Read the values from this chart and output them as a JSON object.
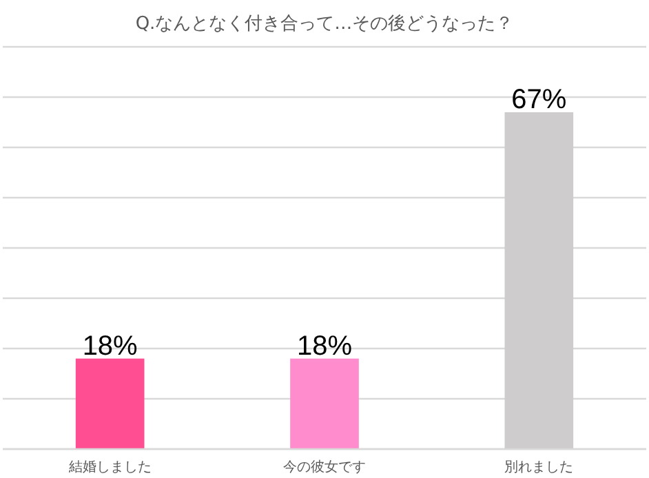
{
  "chart_data": {
    "type": "bar",
    "title": "Q.なんとなく付き合って…その後どうなった？",
    "categories": [
      "結婚しました",
      "今の彼女です",
      "別れました"
    ],
    "values": [
      18,
      18,
      67
    ],
    "colors": [
      "#ff4f92",
      "#ff8ccc",
      "#cecccd"
    ],
    "value_labels": [
      "18%",
      "18%",
      "67%"
    ],
    "ylim": [
      0,
      80
    ],
    "yticks": [
      {
        "value": 0,
        "label": null
      },
      {
        "value": 10,
        "label": null
      },
      {
        "value": 20,
        "label": null
      },
      {
        "value": 30,
        "label": null
      },
      {
        "value": 40,
        "label": null
      },
      {
        "value": 50,
        "label": null
      },
      {
        "value": 60,
        "label": null
      },
      {
        "value": 70,
        "label": null
      },
      {
        "value": 80,
        "label": null
      }
    ],
    "grid": "y",
    "tick_labels": "x"
  }
}
